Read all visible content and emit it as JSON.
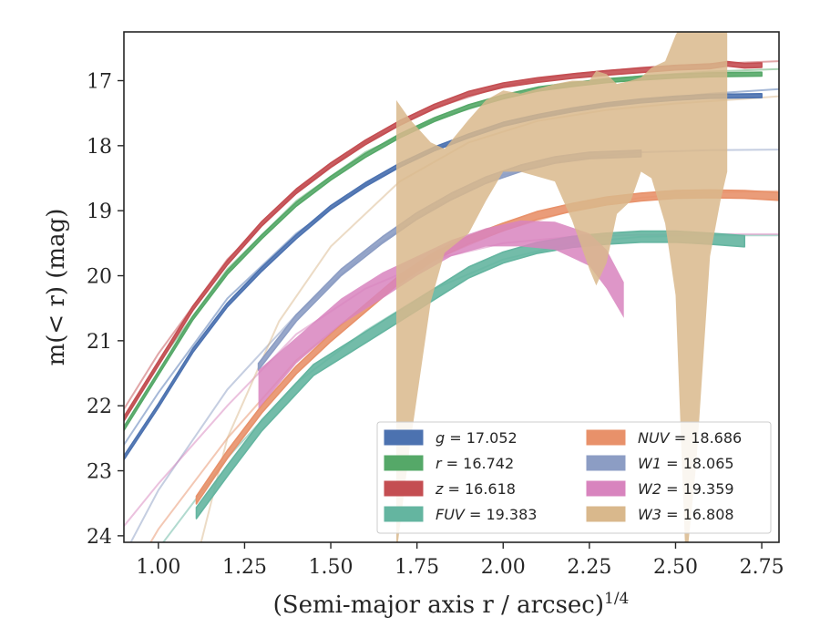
{
  "chart_data": {
    "type": "line",
    "xlabel": "(Semi-major axis r / arcsec)",
    "xlabel_sup": "1/4",
    "ylabel": "m(< r) (mag)",
    "xlim": [
      0.9,
      2.8
    ],
    "ylim": [
      24.1,
      16.25
    ],
    "y_inverted": true,
    "grid": false,
    "legend_position": "lower-right",
    "x_ticks": [
      1.0,
      1.25,
      1.5,
      1.75,
      2.0,
      2.25,
      2.5,
      2.75
    ],
    "x_tick_labels": [
      "1.00",
      "1.25",
      "1.50",
      "1.75",
      "2.00",
      "2.25",
      "2.50",
      "2.75"
    ],
    "y_ticks": [
      17,
      18,
      19,
      20,
      21,
      22,
      23,
      24
    ],
    "y_tick_labels": [
      "17",
      "18",
      "19",
      "20",
      "21",
      "22",
      "23",
      "24"
    ],
    "legend_labels": [
      "g = 17.052",
      "r = 16.742",
      "z = 16.618",
      "FUV = 19.383",
      "NUV = 18.686",
      "W1 = 18.065",
      "W2 = 19.359",
      "W3 = 16.808"
    ],
    "series": [
      {
        "name": "g = 17.052",
        "color": "#4c72b0",
        "measured": {
          "x": [
            0.9,
            1.0,
            1.1,
            1.2,
            1.3,
            1.4,
            1.5,
            1.6,
            1.7,
            1.8,
            1.9,
            2.0,
            2.1,
            2.2,
            2.3,
            2.4,
            2.5,
            2.6,
            2.75
          ],
          "y": [
            22.8,
            22.0,
            21.15,
            20.45,
            19.9,
            19.4,
            18.95,
            18.6,
            18.3,
            18.05,
            17.85,
            17.67,
            17.55,
            17.45,
            17.37,
            17.31,
            17.27,
            17.24,
            17.23
          ],
          "width": 0.06
        },
        "model": {
          "x": [
            0.9,
            1.0,
            1.2,
            1.4,
            1.6,
            1.8,
            2.0,
            2.2,
            2.4,
            2.6,
            2.8
          ],
          "y": [
            22.6,
            21.8,
            20.35,
            19.35,
            18.6,
            18.05,
            17.7,
            17.45,
            17.3,
            17.2,
            17.13
          ]
        }
      },
      {
        "name": "r = 16.742",
        "color": "#55a868",
        "measured": {
          "x": [
            0.9,
            1.0,
            1.1,
            1.2,
            1.3,
            1.4,
            1.5,
            1.6,
            1.7,
            1.8,
            1.9,
            2.0,
            2.1,
            2.2,
            2.3,
            2.4,
            2.5,
            2.6,
            2.75
          ],
          "y": [
            22.35,
            21.5,
            20.65,
            19.95,
            19.4,
            18.9,
            18.5,
            18.15,
            17.85,
            17.6,
            17.4,
            17.25,
            17.13,
            17.06,
            17.0,
            16.96,
            16.93,
            16.91,
            16.9
          ],
          "width": 0.06
        },
        "model": {
          "x": [
            0.9,
            1.0,
            1.2,
            1.4,
            1.6,
            1.8,
            2.0,
            2.2,
            2.4,
            2.6,
            2.8
          ],
          "y": [
            22.2,
            21.35,
            19.9,
            18.85,
            18.1,
            17.6,
            17.27,
            17.05,
            16.93,
            16.86,
            16.82
          ]
        }
      },
      {
        "name": "z = 16.618",
        "color": "#c44e52",
        "measured": {
          "x": [
            0.9,
            1.0,
            1.1,
            1.2,
            1.3,
            1.4,
            1.5,
            1.6,
            1.7,
            1.8,
            1.9,
            2.0,
            2.1,
            2.2,
            2.3,
            2.4,
            2.5,
            2.6,
            2.65,
            2.7,
            2.75
          ],
          "y": [
            22.2,
            21.35,
            20.5,
            19.8,
            19.2,
            18.7,
            18.3,
            17.95,
            17.65,
            17.4,
            17.2,
            17.07,
            16.99,
            16.93,
            16.88,
            16.84,
            16.8,
            16.78,
            16.74,
            16.77,
            16.76
          ],
          "width": 0.07
        },
        "model": {
          "x": [
            0.9,
            1.0,
            1.2,
            1.4,
            1.6,
            1.8,
            2.0,
            2.2,
            2.4,
            2.6,
            2.8
          ],
          "y": [
            22.05,
            21.2,
            19.75,
            18.7,
            17.95,
            17.42,
            17.08,
            16.9,
            16.8,
            16.74,
            16.7
          ]
        }
      },
      {
        "name": "FUV = 19.383",
        "color": "#64b5a0",
        "measured": {
          "x": [
            1.11,
            1.2,
            1.3,
            1.45,
            1.6,
            1.75,
            1.9,
            2.0,
            2.1,
            2.2,
            2.3,
            2.4,
            2.5,
            2.6,
            2.7
          ],
          "y": [
            23.65,
            23.0,
            22.3,
            21.45,
            20.95,
            20.45,
            19.95,
            19.72,
            19.57,
            19.48,
            19.43,
            19.4,
            19.4,
            19.43,
            19.47
          ],
          "width": 0.17
        },
        "model": {
          "x": [
            0.9,
            1.0,
            1.2,
            1.4,
            1.6,
            1.8,
            2.0,
            2.2,
            2.4,
            2.6,
            2.8
          ],
          "y": [
            25.0,
            24.2,
            22.8,
            21.65,
            20.85,
            20.2,
            19.75,
            19.5,
            19.4,
            19.38,
            19.38
          ]
        }
      },
      {
        "name": "NUV = 18.686",
        "color": "#e8916a",
        "measured": {
          "x": [
            1.11,
            1.2,
            1.3,
            1.4,
            1.5,
            1.6,
            1.7,
            1.8,
            1.9,
            2.0,
            2.1,
            2.2,
            2.3,
            2.4,
            2.5,
            2.6,
            2.7,
            2.8
          ],
          "y": [
            23.45,
            22.75,
            22.05,
            21.45,
            20.95,
            20.5,
            20.05,
            19.7,
            19.45,
            19.25,
            19.07,
            18.95,
            18.85,
            18.79,
            18.75,
            18.74,
            18.75,
            18.78
          ],
          "width": 0.12
        },
        "model": {
          "x": [
            0.9,
            1.0,
            1.2,
            1.4,
            1.6,
            1.8,
            2.0,
            2.2,
            2.4,
            2.6,
            2.8
          ],
          "y": [
            24.8,
            23.9,
            22.5,
            21.3,
            20.45,
            19.75,
            19.3,
            19.0,
            18.8,
            18.72,
            18.7
          ]
        }
      },
      {
        "name": "W1 = 18.065",
        "color": "#8c9dc4",
        "measured": {
          "x": [
            1.29,
            1.4,
            1.53,
            1.65,
            1.75,
            1.85,
            1.95,
            2.05,
            2.15,
            2.25,
            2.4
          ],
          "y": [
            21.4,
            20.65,
            19.95,
            19.45,
            19.08,
            18.78,
            18.53,
            18.35,
            18.22,
            18.15,
            18.12
          ],
          "width": 0.1
        },
        "model": {
          "x": [
            0.9,
            1.0,
            1.2,
            1.4,
            1.6,
            1.8,
            2.0,
            2.2,
            2.4,
            2.6,
            2.8
          ],
          "y": [
            24.3,
            23.3,
            21.75,
            20.6,
            19.65,
            18.95,
            18.45,
            18.2,
            18.1,
            18.07,
            18.06
          ]
        }
      },
      {
        "name": "W2 = 19.359",
        "color": "#d884be",
        "measured_band": {
          "x": [
            1.29,
            1.4,
            1.53,
            1.65,
            1.75,
            1.85,
            1.95,
            2.05,
            2.15,
            2.25,
            2.3,
            2.35
          ],
          "y_upper": [
            21.45,
            20.95,
            20.35,
            19.95,
            19.7,
            19.45,
            19.27,
            19.15,
            19.17,
            19.35,
            19.6,
            20.1
          ],
          "y_lower": [
            22.05,
            21.35,
            20.75,
            20.35,
            20.0,
            19.7,
            19.55,
            19.55,
            19.6,
            19.85,
            20.2,
            20.65
          ]
        },
        "model": {
          "x": [
            0.9,
            1.0,
            1.2,
            1.4,
            1.6,
            1.8,
            2.0,
            2.2,
            2.4,
            2.6,
            2.8
          ],
          "y": [
            23.85,
            23.2,
            22.0,
            20.9,
            20.2,
            19.75,
            19.5,
            19.4,
            19.37,
            19.36,
            19.36
          ]
        }
      },
      {
        "name": "W3 = 16.808",
        "color": "#d9b88c",
        "measured_band": {
          "x": [
            1.69,
            1.73,
            1.79,
            1.83,
            1.9,
            1.95,
            2.0,
            2.05,
            2.15,
            2.2,
            2.25,
            2.27,
            2.3,
            2.33,
            2.37,
            2.4,
            2.43,
            2.47,
            2.5,
            2.53,
            2.56,
            2.6,
            2.63,
            2.65
          ],
          "y_upper": [
            17.3,
            17.6,
            17.95,
            18.05,
            17.6,
            17.3,
            17.15,
            17.2,
            17.05,
            17.0,
            17.0,
            16.85,
            16.9,
            17.05,
            17.0,
            16.95,
            16.8,
            16.7,
            16.3,
            16.0,
            16.0,
            16.1,
            16.1,
            16.25
          ],
          "y_lower": [
            24.3,
            22.6,
            20.4,
            19.65,
            19.35,
            18.85,
            18.4,
            18.4,
            18.55,
            19.15,
            19.9,
            20.15,
            19.8,
            19.05,
            18.85,
            18.4,
            18.5,
            19.2,
            20.3,
            24.5,
            22.9,
            19.7,
            18.85,
            18.4
          ]
        },
        "model": {
          "x": [
            1.1,
            1.2,
            1.35,
            1.5,
            1.7,
            1.9,
            2.1,
            2.3,
            2.5,
            2.7,
            2.8
          ],
          "y": [
            24.6,
            22.5,
            20.7,
            19.55,
            18.55,
            17.95,
            17.62,
            17.45,
            17.35,
            17.28,
            17.24
          ]
        }
      }
    ]
  }
}
